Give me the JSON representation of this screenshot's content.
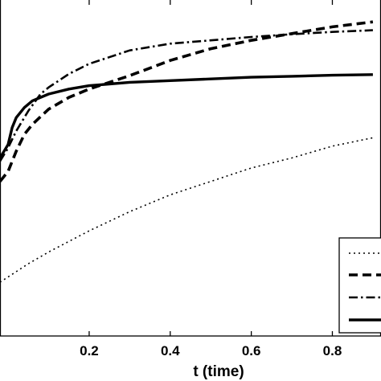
{
  "chart_data": {
    "type": "line",
    "title": "",
    "xlabel": "t (time)",
    "ylabel": "",
    "xlim": [
      -0.02,
      0.92
    ],
    "ylim": [
      0.0,
      1.0
    ],
    "xticks": [
      0.2,
      0.4,
      0.6,
      0.8
    ],
    "xtick_labels": [
      "0.2",
      "0.4",
      "0.6",
      "0.8"
    ],
    "grid": false,
    "legend": {
      "position": "bottom-right",
      "labels_visible": false
    },
    "series": [
      {
        "style": "dotted",
        "color": "#000000",
        "x": [
          -0.02,
          0.05,
          0.1,
          0.2,
          0.3,
          0.4,
          0.5,
          0.6,
          0.7,
          0.8,
          0.9
        ],
        "y": [
          0.16,
          0.215,
          0.25,
          0.313,
          0.37,
          0.42,
          0.46,
          0.5,
          0.53,
          0.565,
          0.59
        ]
      },
      {
        "style": "dashed",
        "color": "#000000",
        "x": [
          -0.02,
          0.0,
          0.02,
          0.04,
          0.06,
          0.1,
          0.15,
          0.2,
          0.25,
          0.3,
          0.4,
          0.5,
          0.6,
          0.7,
          0.8,
          0.9
        ],
        "y": [
          0.46,
          0.49,
          0.55,
          0.6,
          0.63,
          0.675,
          0.71,
          0.735,
          0.755,
          0.775,
          0.82,
          0.855,
          0.88,
          0.9,
          0.92,
          0.935
        ]
      },
      {
        "style": "dashdot",
        "color": "#000000",
        "x": [
          -0.02,
          0.0,
          0.02,
          0.05,
          0.08,
          0.1,
          0.15,
          0.2,
          0.3,
          0.4,
          0.5,
          0.6,
          0.7,
          0.8,
          0.9
        ],
        "y": [
          0.52,
          0.56,
          0.61,
          0.67,
          0.72,
          0.74,
          0.78,
          0.81,
          0.85,
          0.87,
          0.88,
          0.89,
          0.898,
          0.905,
          0.91
        ]
      },
      {
        "style": "solid",
        "color": "#000000",
        "x": [
          -0.02,
          0.0,
          0.01,
          0.02,
          0.04,
          0.06,
          0.1,
          0.15,
          0.2,
          0.3,
          0.4,
          0.5,
          0.6,
          0.7,
          0.8,
          0.9
        ],
        "y": [
          0.53,
          0.57,
          0.62,
          0.65,
          0.68,
          0.7,
          0.72,
          0.735,
          0.745,
          0.755,
          0.76,
          0.765,
          0.77,
          0.773,
          0.776,
          0.778
        ]
      }
    ]
  }
}
